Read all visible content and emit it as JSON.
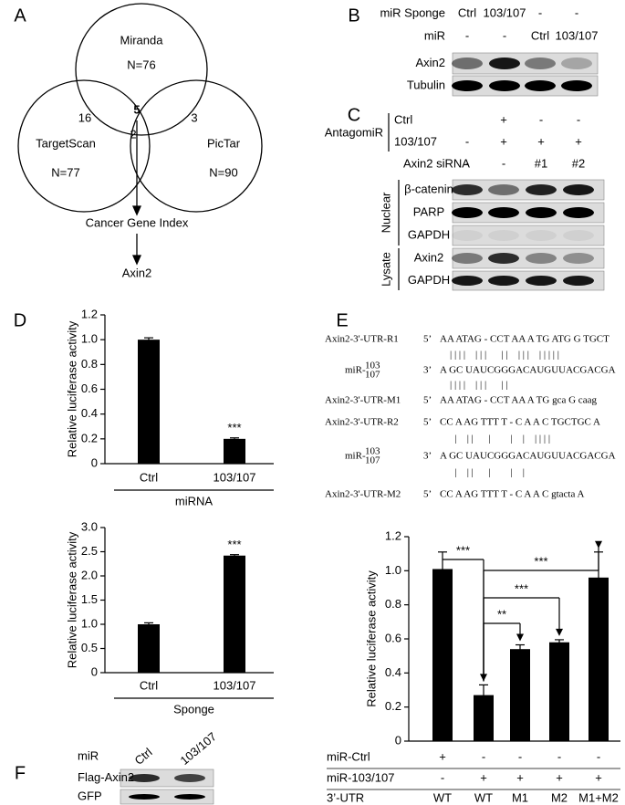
{
  "panel_labels": [
    "A",
    "B",
    "C",
    "D",
    "E",
    "F"
  ],
  "venn": {
    "sets": [
      {
        "name": "Miranda",
        "n": "N=76"
      },
      {
        "name": "TargetScan",
        "n": "N=77"
      },
      {
        "name": "PicTar",
        "n": "N=90"
      }
    ],
    "overlaps": [
      16,
      3,
      5,
      2
    ],
    "flow": [
      "Cancer Gene Index",
      "Axin2"
    ]
  },
  "blot_b": {
    "conditions": [
      {
        "label": "miR Sponge",
        "lanes": [
          "Ctrl",
          "103/107",
          "-",
          "-"
        ]
      },
      {
        "label": "miR",
        "lanes": [
          "-",
          "-",
          "Ctrl",
          "103/107"
        ]
      }
    ],
    "bands": [
      "Axin2",
      "Tubulin"
    ]
  },
  "blot_c": {
    "group_label": "AntagomiR",
    "conditions": [
      {
        "label": "Ctrl",
        "lanes": [
          null,
          "+",
          "-",
          "-"
        ]
      },
      {
        "label": "103/107",
        "lanes": [
          "-",
          "+",
          "+",
          "+"
        ]
      },
      {
        "label": "Axin2 siRNA",
        "lanes": [
          "-",
          "-",
          "#1",
          "#2"
        ]
      }
    ],
    "fractions": [
      {
        "label": "Nuclear",
        "bands": [
          "β-catenin",
          "PARP",
          "GAPDH"
        ]
      },
      {
        "label": "Lysate",
        "bands": [
          "Axin2",
          "GAPDH"
        ]
      }
    ]
  },
  "blot_f": {
    "conditions": [
      {
        "label": "miR",
        "lanes": [
          "Ctrl",
          "103/107"
        ]
      }
    ],
    "bands": [
      "Flag-Axin2",
      "GFP"
    ]
  },
  "alignment": {
    "lines": [
      {
        "label": "Axin2-3'-UTR-R1",
        "end": "5’",
        "sequence": "AA ATAG - CCT AA A TG ATG G TGCT"
      },
      {
        "sequence": "    | | | |    | | |      | |    | | |    | | | | |"
      },
      {
        "label_parts": [
          "miR-",
          "103",
          "107"
        ],
        "end": "3’",
        "sequence": "A GC UAUCGGGACAUGUUACGACGA"
      },
      {
        "sequence": "    | | | |    | | |      | |"
      },
      {
        "label": "Axin2-3'-UTR-M1",
        "end": "5’",
        "sequence": "AA ATAG - CCT AA A TG gca G caag"
      },
      {
        "label": "Axin2-3'-UTR-R2",
        "end": "5’",
        "sequence": "CC A AG TTT T - C A A C TGCTGC A"
      },
      {
        "sequence": "      |    | |      |        |    |    | | | |"
      },
      {
        "label_parts": [
          "miR-",
          "103",
          "107"
        ],
        "end": "3’",
        "sequence": "A GC UAUCGGGACAUGUUACGACGA"
      },
      {
        "sequence": "      |    | |      |        |    |"
      },
      {
        "label": "Axin2-3'-UTR-M2",
        "end": "5’",
        "sequence": "CC A AG TTT T - C A A C gtacta A"
      }
    ]
  },
  "chart_data": [
    {
      "type": "bar",
      "ylabel": "Relative luciferase activity",
      "categories": [
        "Ctrl",
        "103/107"
      ],
      "values": [
        1.0,
        0.2
      ],
      "errors": [
        0.015,
        0.008
      ],
      "color": "#000000",
      "ylim": [
        0,
        1.2
      ],
      "yticks": [
        0,
        0.2,
        0.4,
        0.6,
        0.8,
        {
          "value": 1,
          "label": "1.0"
        },
        1.2
      ],
      "xlabel": "miRNA",
      "significance": [
        null,
        "***"
      ]
    },
    {
      "type": "bar",
      "ylabel": "Relative luciferase activity",
      "categories": [
        "Ctrl",
        "103/107"
      ],
      "values": [
        1.0,
        2.42
      ],
      "errors": [
        0.03,
        0.02
      ],
      "color": "#000000",
      "ylim": [
        0,
        3
      ],
      "yticks": [
        0,
        0.5,
        {
          "value": 1,
          "label": "1.0"
        },
        1.5,
        {
          "value": 2,
          "label": "2.0"
        },
        2.5,
        {
          "value": 3,
          "label": "3.0"
        }
      ],
      "xlabel": "Sponge",
      "significance": [
        null,
        "***"
      ]
    },
    {
      "type": "bar",
      "ylabel": "Relative luciferase activity",
      "values": [
        1.01,
        0.27,
        0.54,
        0.58,
        0.96
      ],
      "errors": [
        0.1,
        0.06,
        0.025,
        0.015,
        0.15
      ],
      "color": "#000000",
      "ylim": [
        0,
        1.2
      ],
      "yticks": [
        0,
        0.2,
        0.4,
        0.6,
        0.8,
        {
          "value": 1,
          "label": "1.0"
        },
        1.2
      ],
      "condition_rows": [
        {
          "label": "miR-Ctrl",
          "values": [
            "+",
            "-",
            "-",
            "-",
            "-"
          ]
        },
        {
          "label": "miR-103/107",
          "values": [
            "-",
            "+",
            "+",
            "+",
            "+"
          ]
        },
        {
          "label": "3’-UTR",
          "values": [
            "WT",
            "WT",
            "M1",
            "M2",
            "M1+M2"
          ]
        }
      ],
      "comparisons": [
        {
          "from": 0,
          "to": 1,
          "label": "***"
        },
        {
          "from": 1,
          "to": 4,
          "label": "***"
        },
        {
          "from": 1,
          "to": 3,
          "label": "***"
        },
        {
          "from": 1,
          "to": 2,
          "label": "**"
        }
      ]
    }
  ]
}
